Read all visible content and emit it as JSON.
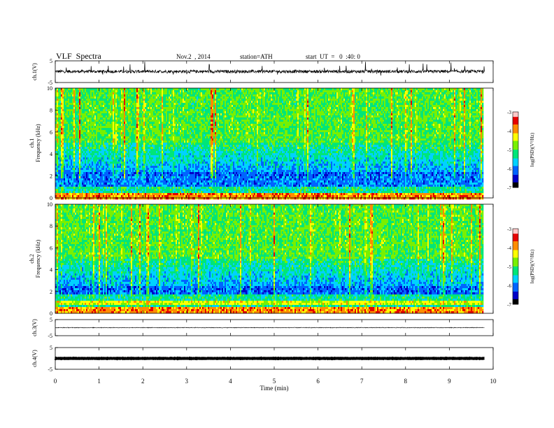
{
  "header": {
    "title": "VLF  Spectra",
    "date": "Nov.2  , 2014",
    "station": "station=ATH",
    "start": "start  UT  =   0  :40: 0"
  },
  "chart_data": {
    "type": "heatmap",
    "xlabel": "Time  (min)",
    "xlim": [
      0,
      10
    ],
    "xticks": [
      "0",
      "1",
      "2",
      "3",
      "4",
      "5",
      "6",
      "7",
      "8",
      "9",
      "10"
    ],
    "data_end_min": 9.8,
    "panels": [
      {
        "kind": "waveform",
        "ylabel": "ch.1(V)",
        "ylim": [
          -5,
          5
        ],
        "yticks": [
          "5",
          "-5"
        ]
      },
      {
        "kind": "spectrogram",
        "ylabel": "ch.1\nFrequency  (kHz)",
        "ylim": [
          0,
          10
        ],
        "yticks": [
          "0",
          "2",
          "4",
          "6",
          "8",
          "10"
        ],
        "colorbar": {
          "label": "log(PSD)(V²/Hz)",
          "range": [
            -7,
            -3
          ],
          "ticks": [
            "-3",
            "-4",
            "-5",
            "-6",
            "-7"
          ]
        }
      },
      {
        "kind": "spectrogram",
        "ylabel": "ch.2\nFrequency  (kHz)",
        "ylim": [
          0,
          10
        ],
        "yticks": [
          "0",
          "2",
          "4",
          "6",
          "8",
          "10"
        ],
        "colorbar": {
          "label": "log(PSD)(V²/Hz)",
          "range": [
            -7,
            -3
          ],
          "ticks": [
            "-3",
            "-4",
            "-5",
            "-6",
            "-7"
          ]
        }
      },
      {
        "kind": "waveform",
        "ylabel": "ch.3(V)",
        "ylim": [
          -5,
          5
        ],
        "yticks": [
          "5",
          "-5"
        ]
      },
      {
        "kind": "waveform",
        "ylabel": "ch.4(V)",
        "ylim": [
          -5,
          5
        ],
        "yticks": [
          "5",
          "-5"
        ]
      }
    ],
    "colormap": [
      "#000000",
      "#0000c8",
      "#0064ff",
      "#00d2ff",
      "#00e678",
      "#78f000",
      "#ffff00",
      "#ff8c00",
      "#e60000",
      "#ffc8c8"
    ]
  }
}
